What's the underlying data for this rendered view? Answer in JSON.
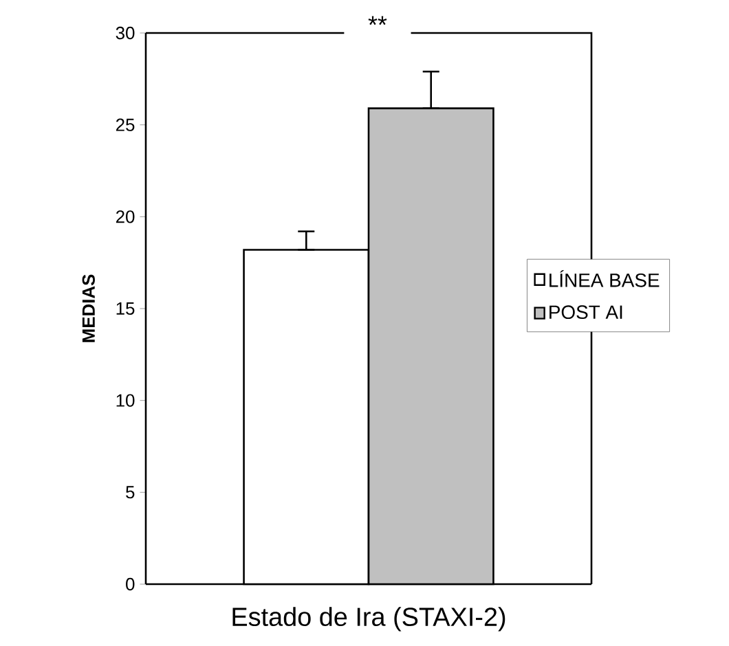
{
  "chart_data": {
    "type": "bar",
    "xlabel": "Estado de Ira (STAXI-2)",
    "ylabel": "MEDIAS",
    "categories": [
      null
    ],
    "series": [
      {
        "name": "LÍNEA BASE",
        "color": "#ffffff",
        "values": [
          18.2
        ],
        "errors": [
          [
            18.2,
            19.2
          ]
        ]
      },
      {
        "name": "POST AI",
        "color": "#c0c0c0",
        "values": [
          25.9
        ],
        "errors": [
          [
            25.9,
            27.9
          ]
        ]
      }
    ],
    "ylim": [
      0,
      30
    ],
    "yticks": [
      0,
      5,
      10,
      15,
      20,
      25,
      30
    ],
    "grid": false,
    "legend": "right",
    "annotations": [
      "**"
    ]
  }
}
